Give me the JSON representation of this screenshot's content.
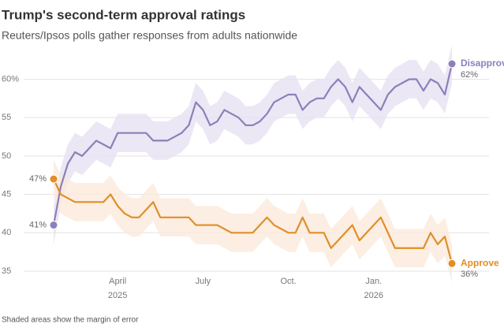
{
  "chart_data": {
    "type": "line",
    "title": "Trump's second-term approval ratings",
    "subtitle": "Reuters/Ipsos polls gather responses from adults nationwide",
    "note": "Shaded areas show the margin of error",
    "categories": [
      null,
      null,
      null,
      null,
      null,
      null,
      null,
      null,
      null,
      "April",
      null,
      null,
      null,
      null,
      null,
      null,
      null,
      null,
      null,
      null,
      null,
      "July",
      null,
      null,
      null,
      null,
      null,
      null,
      null,
      null,
      null,
      null,
      null,
      "Oct.",
      null,
      null,
      null,
      null,
      null,
      null,
      null,
      null,
      null,
      null,
      null,
      "Jan.",
      null,
      null,
      null,
      null,
      null,
      null,
      null,
      null,
      null,
      null,
      null
    ],
    "category_years": [
      null,
      null,
      null,
      null,
      null,
      null,
      null,
      null,
      null,
      "2025",
      null,
      null,
      null,
      null,
      null,
      null,
      null,
      null,
      null,
      null,
      null,
      null,
      null,
      null,
      null,
      null,
      null,
      null,
      null,
      null,
      null,
      null,
      null,
      null,
      null,
      null,
      null,
      null,
      null,
      null,
      null,
      null,
      null,
      null,
      null,
      "2026",
      null,
      null,
      null,
      null,
      null,
      null,
      null,
      null,
      null,
      null,
      null
    ],
    "ylim": [
      35,
      62
    ],
    "yticks": [
      35,
      40,
      45,
      50,
      55,
      {
        "value": 60,
        "label": "60%"
      }
    ],
    "grid": true,
    "series": [
      {
        "name": "Disapprove",
        "color": "#8d7fba",
        "band_color": "#e6e1f1",
        "moe": 2.5,
        "values": [
          41,
          46,
          49,
          50.5,
          50,
          51,
          52,
          51.5,
          51,
          53,
          53,
          53,
          53,
          53,
          52,
          52,
          52,
          52.5,
          53,
          54,
          57,
          56,
          54,
          54.5,
          56,
          55.5,
          55,
          54,
          54,
          54.5,
          55.5,
          57,
          57.5,
          58,
          58,
          56,
          57,
          57.5,
          57.5,
          59,
          60,
          59,
          57,
          59,
          58,
          57,
          56,
          58,
          59,
          59.5,
          60,
          60,
          58.5,
          60,
          59.5,
          58,
          62
        ],
        "value_labels": [
          "41%",
          null,
          null,
          null,
          null,
          null,
          null,
          null,
          null,
          null,
          null,
          null,
          null,
          null,
          null,
          null,
          null,
          null,
          null,
          null,
          null,
          null,
          null,
          null,
          null,
          null,
          null,
          null,
          null,
          null,
          null,
          null,
          null,
          null,
          null,
          null,
          null,
          null,
          null,
          null,
          null,
          null,
          null,
          null,
          null,
          null,
          null,
          null,
          null,
          null,
          null,
          null,
          null,
          null,
          null,
          null,
          "62%"
        ]
      },
      {
        "name": "Approve",
        "color": "#e08e27",
        "band_color": "#fbeadb",
        "moe": 2.5,
        "values": [
          47,
          45,
          44.5,
          44,
          44,
          44,
          44,
          44,
          45,
          43.5,
          42.5,
          42,
          42,
          43,
          44,
          42,
          42,
          42,
          42,
          42,
          41,
          41,
          41,
          41,
          40.5,
          40,
          40,
          40,
          40,
          41,
          42,
          41,
          40.5,
          40,
          40,
          42,
          40,
          40,
          40,
          38,
          39,
          40,
          41,
          39,
          40,
          41,
          42,
          40,
          38,
          38,
          38,
          38,
          38,
          40,
          38.5,
          39.5,
          36
        ],
        "value_labels": [
          "47%",
          null,
          null,
          null,
          null,
          null,
          null,
          null,
          null,
          null,
          null,
          null,
          null,
          null,
          null,
          null,
          null,
          null,
          null,
          null,
          null,
          null,
          null,
          null,
          null,
          null,
          null,
          null,
          null,
          null,
          null,
          null,
          null,
          null,
          null,
          null,
          null,
          null,
          null,
          null,
          null,
          null,
          null,
          null,
          null,
          null,
          null,
          null,
          null,
          null,
          null,
          null,
          null,
          null,
          null,
          null,
          "36%"
        ]
      }
    ]
  }
}
